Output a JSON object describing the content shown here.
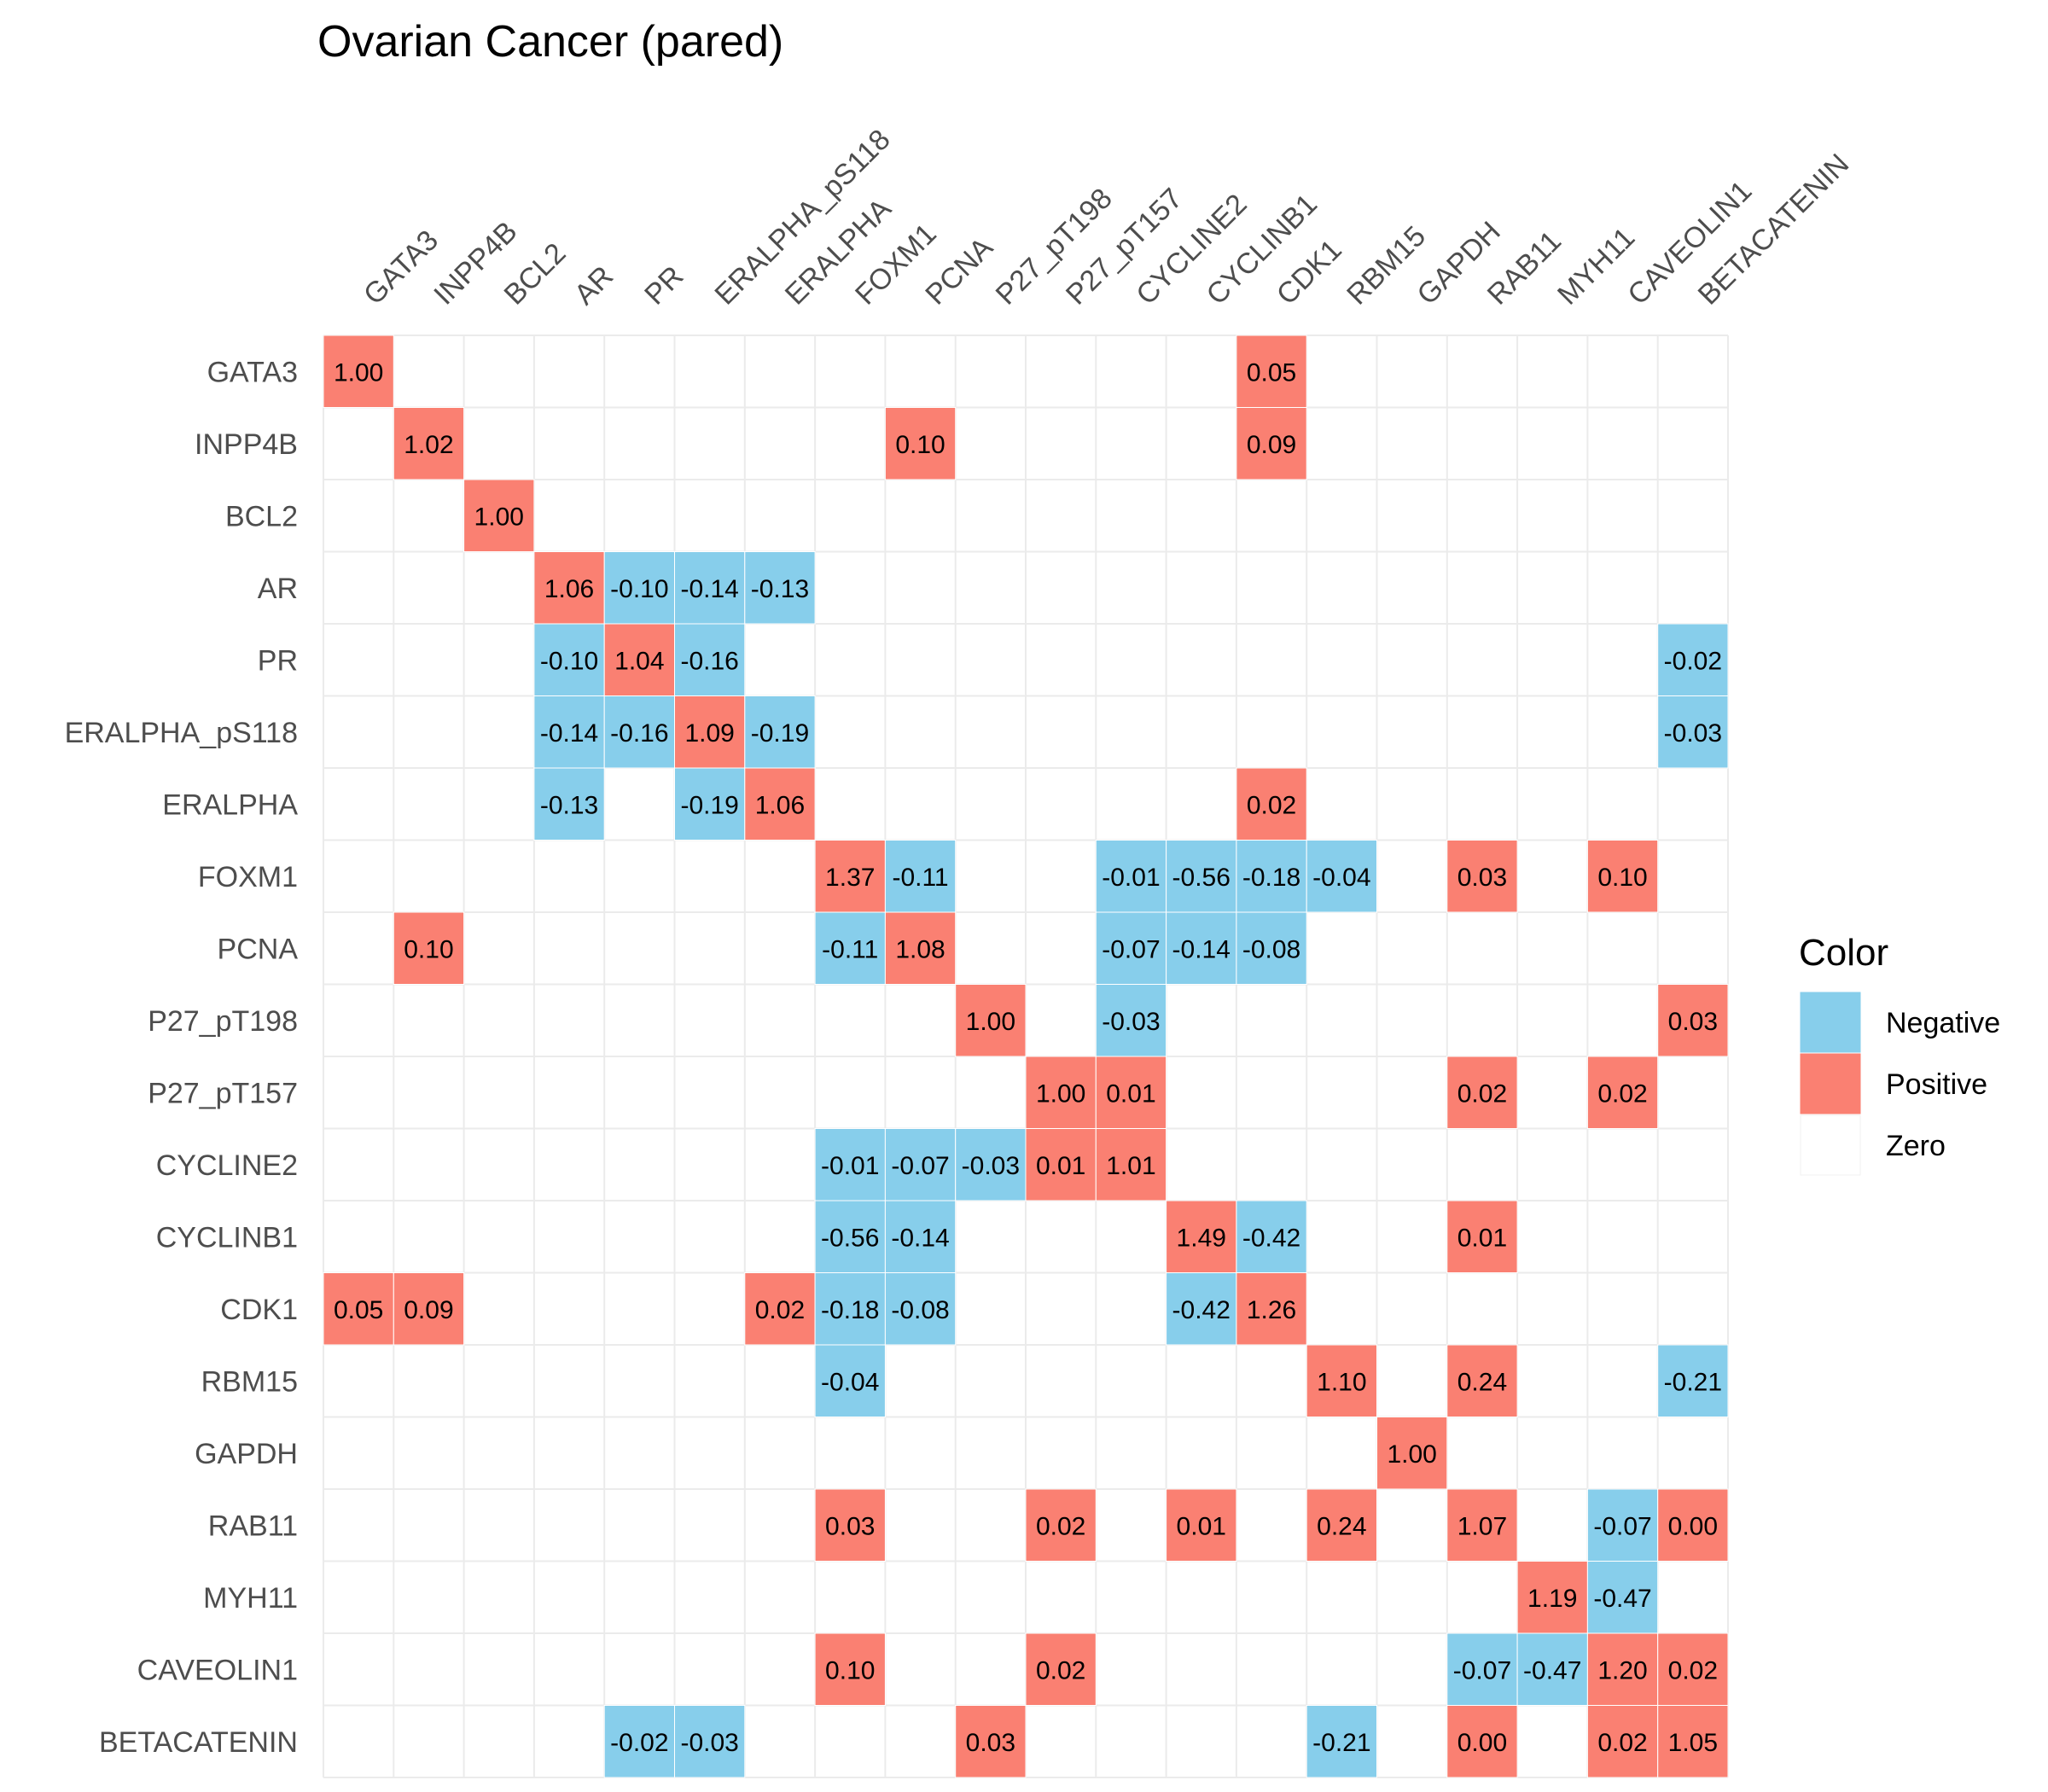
{
  "chart_data": {
    "type": "heatmap",
    "title": "Ovarian Cancer (pared)",
    "variables": [
      "GATA3",
      "INPP4B",
      "BCL2",
      "AR",
      "PR",
      "ERALPHA_pS118",
      "ERALPHA",
      "FOXM1",
      "PCNA",
      "P27_pT198",
      "P27_pT157",
      "CYCLINE2",
      "CYCLINB1",
      "CDK1",
      "RBM15",
      "GAPDH",
      "RAB11",
      "MYH11",
      "CAVEOLIN1",
      "BETACATENIN"
    ],
    "cells": [
      {
        "row": "GATA3",
        "col": "GATA3",
        "value": 1.0,
        "label": "1.00"
      },
      {
        "row": "GATA3",
        "col": "CDK1",
        "value": 0.05,
        "label": "0.05"
      },
      {
        "row": "INPP4B",
        "col": "INPP4B",
        "value": 1.02,
        "label": "1.02"
      },
      {
        "row": "INPP4B",
        "col": "PCNA",
        "value": 0.1,
        "label": "0.10"
      },
      {
        "row": "INPP4B",
        "col": "CDK1",
        "value": 0.09,
        "label": "0.09"
      },
      {
        "row": "BCL2",
        "col": "BCL2",
        "value": 1.0,
        "label": "1.00"
      },
      {
        "row": "AR",
        "col": "AR",
        "value": 1.06,
        "label": "1.06"
      },
      {
        "row": "AR",
        "col": "PR",
        "value": -0.1,
        "label": "-0.10"
      },
      {
        "row": "AR",
        "col": "ERALPHA_pS118",
        "value": -0.14,
        "label": "-0.14"
      },
      {
        "row": "AR",
        "col": "ERALPHA",
        "value": -0.13,
        "label": "-0.13"
      },
      {
        "row": "PR",
        "col": "AR",
        "value": -0.1,
        "label": "-0.10"
      },
      {
        "row": "PR",
        "col": "PR",
        "value": 1.04,
        "label": "1.04"
      },
      {
        "row": "PR",
        "col": "ERALPHA_pS118",
        "value": -0.16,
        "label": "-0.16"
      },
      {
        "row": "PR",
        "col": "BETACATENIN",
        "value": -0.02,
        "label": "-0.02"
      },
      {
        "row": "ERALPHA_pS118",
        "col": "AR",
        "value": -0.14,
        "label": "-0.14"
      },
      {
        "row": "ERALPHA_pS118",
        "col": "PR",
        "value": -0.16,
        "label": "-0.16"
      },
      {
        "row": "ERALPHA_pS118",
        "col": "ERALPHA_pS118",
        "value": 1.09,
        "label": "1.09"
      },
      {
        "row": "ERALPHA_pS118",
        "col": "ERALPHA",
        "value": -0.19,
        "label": "-0.19"
      },
      {
        "row": "ERALPHA_pS118",
        "col": "BETACATENIN",
        "value": -0.03,
        "label": "-0.03"
      },
      {
        "row": "ERALPHA",
        "col": "AR",
        "value": -0.13,
        "label": "-0.13"
      },
      {
        "row": "ERALPHA",
        "col": "ERALPHA_pS118",
        "value": -0.19,
        "label": "-0.19"
      },
      {
        "row": "ERALPHA",
        "col": "ERALPHA",
        "value": 1.06,
        "label": "1.06"
      },
      {
        "row": "ERALPHA",
        "col": "CDK1",
        "value": 0.02,
        "label": "0.02"
      },
      {
        "row": "FOXM1",
        "col": "FOXM1",
        "value": 1.37,
        "label": "1.37"
      },
      {
        "row": "FOXM1",
        "col": "PCNA",
        "value": -0.11,
        "label": "-0.11"
      },
      {
        "row": "FOXM1",
        "col": "CYCLINE2",
        "value": -0.01,
        "label": "-0.01"
      },
      {
        "row": "FOXM1",
        "col": "CYCLINB1",
        "value": -0.56,
        "label": "-0.56"
      },
      {
        "row": "FOXM1",
        "col": "CDK1",
        "value": -0.18,
        "label": "-0.18"
      },
      {
        "row": "FOXM1",
        "col": "RBM15",
        "value": -0.04,
        "label": "-0.04"
      },
      {
        "row": "FOXM1",
        "col": "RAB11",
        "value": 0.03,
        "label": "0.03"
      },
      {
        "row": "FOXM1",
        "col": "CAVEOLIN1",
        "value": 0.1,
        "label": "0.10"
      },
      {
        "row": "PCNA",
        "col": "INPP4B",
        "value": 0.1,
        "label": "0.10"
      },
      {
        "row": "PCNA",
        "col": "FOXM1",
        "value": -0.11,
        "label": "-0.11"
      },
      {
        "row": "PCNA",
        "col": "PCNA",
        "value": 1.08,
        "label": "1.08"
      },
      {
        "row": "PCNA",
        "col": "CYCLINE2",
        "value": -0.07,
        "label": "-0.07"
      },
      {
        "row": "PCNA",
        "col": "CYCLINB1",
        "value": -0.14,
        "label": "-0.14"
      },
      {
        "row": "PCNA",
        "col": "CDK1",
        "value": -0.08,
        "label": "-0.08"
      },
      {
        "row": "P27_pT198",
        "col": "P27_pT198",
        "value": 1.0,
        "label": "1.00"
      },
      {
        "row": "P27_pT198",
        "col": "CYCLINE2",
        "value": -0.03,
        "label": "-0.03"
      },
      {
        "row": "P27_pT198",
        "col": "BETACATENIN",
        "value": 0.03,
        "label": "0.03"
      },
      {
        "row": "P27_pT157",
        "col": "P27_pT157",
        "value": 1.0,
        "label": "1.00"
      },
      {
        "row": "P27_pT157",
        "col": "CYCLINE2",
        "value": 0.01,
        "label": "0.01"
      },
      {
        "row": "P27_pT157",
        "col": "RAB11",
        "value": 0.02,
        "label": "0.02"
      },
      {
        "row": "P27_pT157",
        "col": "CAVEOLIN1",
        "value": 0.02,
        "label": "0.02"
      },
      {
        "row": "CYCLINE2",
        "col": "FOXM1",
        "value": -0.01,
        "label": "-0.01"
      },
      {
        "row": "CYCLINE2",
        "col": "PCNA",
        "value": -0.07,
        "label": "-0.07"
      },
      {
        "row": "CYCLINE2",
        "col": "P27_pT198",
        "value": -0.03,
        "label": "-0.03"
      },
      {
        "row": "CYCLINE2",
        "col": "P27_pT157",
        "value": 0.01,
        "label": "0.01"
      },
      {
        "row": "CYCLINE2",
        "col": "CYCLINE2",
        "value": 1.01,
        "label": "1.01"
      },
      {
        "row": "CYCLINB1",
        "col": "FOXM1",
        "value": -0.56,
        "label": "-0.56"
      },
      {
        "row": "CYCLINB1",
        "col": "PCNA",
        "value": -0.14,
        "label": "-0.14"
      },
      {
        "row": "CYCLINB1",
        "col": "CYCLINB1",
        "value": 1.49,
        "label": "1.49"
      },
      {
        "row": "CYCLINB1",
        "col": "CDK1",
        "value": -0.42,
        "label": "-0.42"
      },
      {
        "row": "CYCLINB1",
        "col": "RAB11",
        "value": 0.01,
        "label": "0.01"
      },
      {
        "row": "CDK1",
        "col": "GATA3",
        "value": 0.05,
        "label": "0.05"
      },
      {
        "row": "CDK1",
        "col": "INPP4B",
        "value": 0.09,
        "label": "0.09"
      },
      {
        "row": "CDK1",
        "col": "ERALPHA",
        "value": 0.02,
        "label": "0.02"
      },
      {
        "row": "CDK1",
        "col": "FOXM1",
        "value": -0.18,
        "label": "-0.18"
      },
      {
        "row": "CDK1",
        "col": "PCNA",
        "value": -0.08,
        "label": "-0.08"
      },
      {
        "row": "CDK1",
        "col": "CYCLINB1",
        "value": -0.42,
        "label": "-0.42"
      },
      {
        "row": "CDK1",
        "col": "CDK1",
        "value": 1.26,
        "label": "1.26"
      },
      {
        "row": "RBM15",
        "col": "FOXM1",
        "value": -0.04,
        "label": "-0.04"
      },
      {
        "row": "RBM15",
        "col": "RBM15",
        "value": 1.1,
        "label": "1.10"
      },
      {
        "row": "RBM15",
        "col": "RAB11",
        "value": 0.24,
        "label": "0.24"
      },
      {
        "row": "RBM15",
        "col": "BETACATENIN",
        "value": -0.21,
        "label": "-0.21"
      },
      {
        "row": "GAPDH",
        "col": "GAPDH",
        "value": 1.0,
        "label": "1.00"
      },
      {
        "row": "RAB11",
        "col": "FOXM1",
        "value": 0.03,
        "label": "0.03"
      },
      {
        "row": "RAB11",
        "col": "P27_pT157",
        "value": 0.02,
        "label": "0.02"
      },
      {
        "row": "RAB11",
        "col": "CYCLINB1",
        "value": 0.01,
        "label": "0.01"
      },
      {
        "row": "RAB11",
        "col": "RBM15",
        "value": 0.24,
        "label": "0.24"
      },
      {
        "row": "RAB11",
        "col": "RAB11",
        "value": 1.07,
        "label": "1.07"
      },
      {
        "row": "RAB11",
        "col": "CAVEOLIN1",
        "value": -0.07,
        "label": "-0.07"
      },
      {
        "row": "RAB11",
        "col": "BETACATENIN",
        "value": 0.0,
        "label": "0.00"
      },
      {
        "row": "MYH11",
        "col": "MYH11",
        "value": 1.19,
        "label": "1.19"
      },
      {
        "row": "MYH11",
        "col": "CAVEOLIN1",
        "value": -0.47,
        "label": "-0.47"
      },
      {
        "row": "CAVEOLIN1",
        "col": "FOXM1",
        "value": 0.1,
        "label": "0.10"
      },
      {
        "row": "CAVEOLIN1",
        "col": "P27_pT157",
        "value": 0.02,
        "label": "0.02"
      },
      {
        "row": "CAVEOLIN1",
        "col": "RAB11",
        "value": -0.07,
        "label": "-0.07"
      },
      {
        "row": "CAVEOLIN1",
        "col": "MYH11",
        "value": -0.47,
        "label": "-0.47"
      },
      {
        "row": "CAVEOLIN1",
        "col": "CAVEOLIN1",
        "value": 1.2,
        "label": "1.20"
      },
      {
        "row": "CAVEOLIN1",
        "col": "BETACATENIN",
        "value": 0.02,
        "label": "0.02"
      },
      {
        "row": "BETACATENIN",
        "col": "PR",
        "value": -0.02,
        "label": "-0.02"
      },
      {
        "row": "BETACATENIN",
        "col": "ERALPHA_pS118",
        "value": -0.03,
        "label": "-0.03"
      },
      {
        "row": "BETACATENIN",
        "col": "P27_pT198",
        "value": 0.03,
        "label": "0.03"
      },
      {
        "row": "BETACATENIN",
        "col": "RBM15",
        "value": -0.21,
        "label": "-0.21"
      },
      {
        "row": "BETACATENIN",
        "col": "RAB11",
        "value": 0.0,
        "label": "0.00"
      },
      {
        "row": "BETACATENIN",
        "col": "CAVEOLIN1",
        "value": 0.02,
        "label": "0.02"
      },
      {
        "row": "BETACATENIN",
        "col": "BETACATENIN",
        "value": 1.05,
        "label": "1.05"
      }
    ],
    "legend": {
      "title": "Color",
      "placement": "right",
      "entries": [
        {
          "label": "Negative",
          "color": "#87CEEB"
        },
        {
          "label": "Positive",
          "color": "#FA8072"
        },
        {
          "label": "Zero",
          "color": "#FFFFFF"
        }
      ]
    },
    "grid": true,
    "colors": {
      "negative": "#87CEEB",
      "positive": "#FA8072",
      "zero": "#FFFFFF",
      "grid": "#EBEBEB"
    }
  }
}
